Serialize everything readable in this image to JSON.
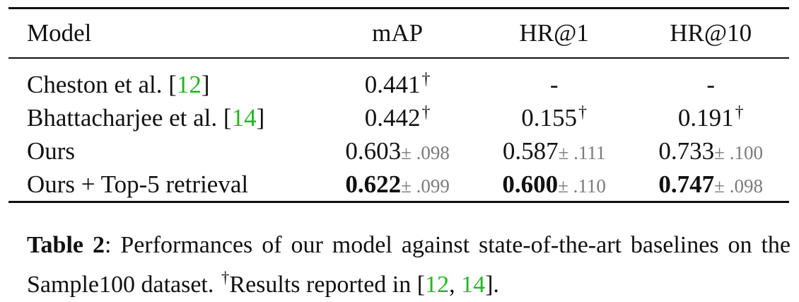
{
  "table": {
    "headers": {
      "model": "Model",
      "map": "mAP",
      "hr1": "HR@1",
      "hr10": "HR@10"
    },
    "rows": [
      {
        "model": "Cheston et al. [",
        "cite": "12",
        "cite_close": "]",
        "map": {
          "val": "0.441",
          "mark": "†"
        },
        "hr1": {
          "val": "-"
        },
        "hr10": {
          "val": "-"
        }
      },
      {
        "model": "Bhattacharjee et al. [",
        "cite": "14",
        "cite_close": "]",
        "map": {
          "val": "0.442",
          "mark": "†"
        },
        "hr1": {
          "val": "0.155",
          "mark": "†"
        },
        "hr10": {
          "val": "0.191",
          "mark": "†"
        }
      },
      {
        "model": "Ours",
        "map": {
          "val": "0.603",
          "std": "± .098"
        },
        "hr1": {
          "val": "0.587",
          "std": "± .111"
        },
        "hr10": {
          "val": "0.733",
          "std": "± .100"
        }
      },
      {
        "model": "Ours + Top-5 retrieval",
        "map": {
          "val": "0.622",
          "std": "± .099"
        },
        "hr1": {
          "val": "0.600",
          "std": "± .110"
        },
        "hr10": {
          "val": "0.747",
          "std": "± .098"
        }
      }
    ]
  },
  "caption": {
    "label": "Table 2",
    "text1": ": Performances of our model against state-of-the-art baselines on the Sample100 dataset. ",
    "dagger": "†",
    "text2": "Results reported in [",
    "cite1": "12",
    "sep": ", ",
    "cite2": "14",
    "text3": "]."
  },
  "colors": {
    "citation": "#22b822",
    "std": "#7a7a7a"
  }
}
